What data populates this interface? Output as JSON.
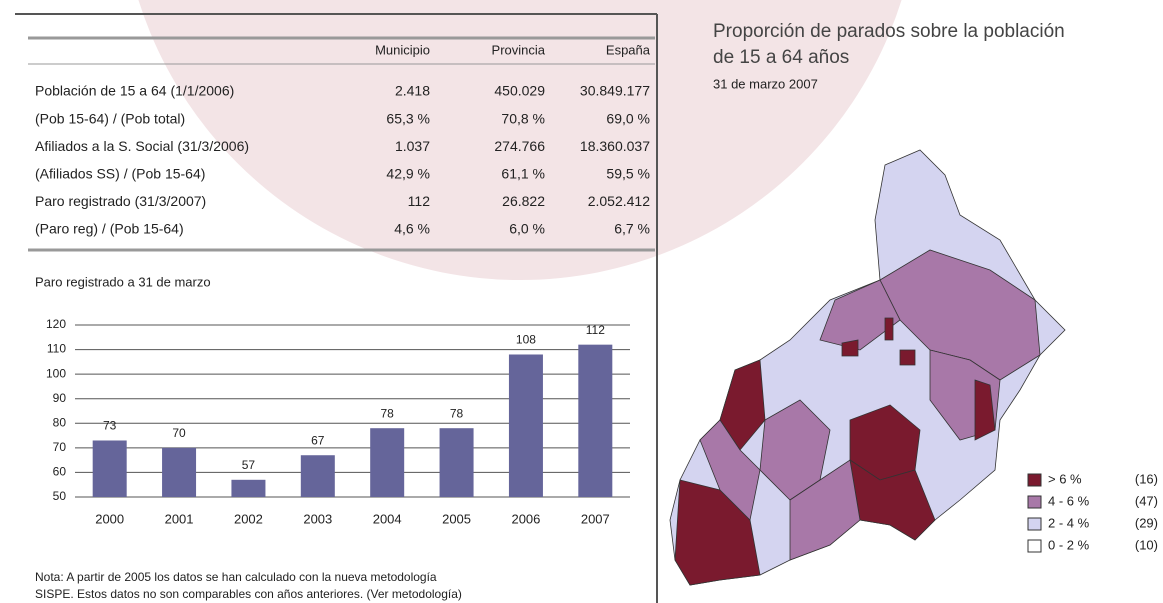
{
  "table": {
    "columns": [
      "Municipio",
      "Provincia",
      "España"
    ],
    "rows": [
      [
        "Población de 15 a 64 (1/1/2006)",
        "2.418",
        "450.029",
        "30.849.177"
      ],
      [
        "(Pob 15-64) / (Pob total)",
        "65,3 %",
        "70,8 %",
        "69,0 %"
      ],
      [
        "Afiliados a la S. Social (31/3/2006)",
        "1.037",
        "274.766",
        "18.360.037"
      ],
      [
        "(Afiliados SS) / (Pob 15-64)",
        "42,9 %",
        "61,1 %",
        "59,5 %"
      ],
      [
        "Paro registrado (31/3/2007)",
        "112",
        "26.822",
        "2.052.412"
      ],
      [
        "(Paro reg) / (Pob 15-64)",
        "4,6 %",
        "6,0 %",
        "6,7 %"
      ]
    ]
  },
  "chart_data": {
    "type": "bar",
    "title": "Paro registrado a 31 de marzo",
    "categories": [
      "2000",
      "2001",
      "2002",
      "2003",
      "2004",
      "2005",
      "2006",
      "2007"
    ],
    "values": [
      73,
      70,
      57,
      67,
      78,
      78,
      108,
      112
    ],
    "color": "#65659a",
    "ylim": [
      50,
      120
    ],
    "yticks": [
      50,
      60,
      70,
      80,
      90,
      100,
      110,
      120
    ],
    "grid": true
  },
  "note": [
    "Nota: A partir de 2005 los datos se han calculado con la nueva metodología",
    "SISPE. Estos datos no son comparables con años anteriores. (Ver metodología)"
  ],
  "map": {
    "title": [
      "Proporción de parados sobre la población",
      "de 15 a 64 años"
    ],
    "subtitle": "31 de marzo 2007",
    "legend": [
      {
        "label": "> 6 %",
        "count": "(16)",
        "color": "#7a1a2e"
      },
      {
        "label": "4 - 6 %",
        "count": "(47)",
        "color": "#a878a8"
      },
      {
        "label": "2 - 4 %",
        "count": "(29)",
        "color": "#d4d4f0"
      },
      {
        "label": "0 - 2 %",
        "count": "(10)",
        "color": "#ffffff"
      }
    ]
  }
}
